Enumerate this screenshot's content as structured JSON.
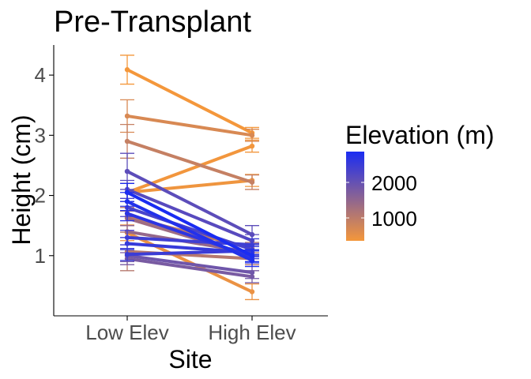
{
  "chart_data": {
    "type": "line",
    "title": "Pre-Transplant",
    "xlabel": "Site",
    "ylabel": "Height (cm)",
    "categories": [
      "Low Elev",
      "High Elev"
    ],
    "y_ticks": [
      "1",
      "2",
      "3",
      "4"
    ],
    "ylim": [
      0.0,
      4.5
    ],
    "grid": false,
    "legend": {
      "title": "Elevation (m)",
      "placement": "right",
      "labels": [
        "2000",
        "1000"
      ],
      "colorscale": {
        "low": "#F4973B",
        "high": "#1A2CF2"
      }
    },
    "series": [
      {
        "elevation": 400,
        "values": [
          4.09,
          3.04
        ],
        "err": [
          [
            3.85,
            4.33
          ],
          [
            2.95,
            3.13
          ]
        ]
      },
      {
        "elevation": 420,
        "values": [
          2.05,
          2.82
        ],
        "err": [
          [
            1.9,
            2.2
          ],
          [
            2.72,
            2.92
          ]
        ]
      },
      {
        "elevation": 450,
        "values": [
          2.05,
          2.25
        ],
        "err": [
          [
            1.9,
            2.2
          ],
          [
            2.15,
            2.35
          ]
        ]
      },
      {
        "elevation": 500,
        "values": [
          1.38,
          0.4
        ],
        "err": [
          [
            1.25,
            1.51
          ],
          [
            0.27,
            0.53
          ]
        ]
      },
      {
        "elevation": 700,
        "values": [
          3.32,
          3.0
        ],
        "err": [
          [
            3.05,
            3.59
          ],
          [
            2.9,
            3.1
          ]
        ]
      },
      {
        "elevation": 900,
        "values": [
          2.9,
          2.22
        ],
        "err": [
          [
            2.62,
            3.18
          ],
          [
            2.1,
            2.34
          ]
        ]
      },
      {
        "elevation": 1000,
        "values": [
          1.65,
          1.12
        ],
        "err": [
          [
            1.5,
            1.8
          ],
          [
            1.02,
            1.22
          ]
        ]
      },
      {
        "elevation": 1050,
        "values": [
          1.07,
          0.95
        ],
        "err": [
          [
            0.75,
            1.39
          ],
          [
            0.85,
            1.05
          ]
        ]
      },
      {
        "elevation": 1300,
        "values": [
          1.62,
          1.0
        ],
        "err": [
          [
            1.5,
            1.74
          ],
          [
            0.9,
            1.1
          ]
        ]
      },
      {
        "elevation": 1400,
        "values": [
          1.4,
          1.05
        ],
        "err": [
          [
            1.3,
            1.5
          ],
          [
            0.95,
            1.15
          ]
        ]
      },
      {
        "elevation": 1700,
        "values": [
          0.95,
          0.65
        ],
        "err": [
          [
            0.85,
            1.05
          ],
          [
            0.55,
            0.75
          ]
        ]
      },
      {
        "elevation": 1800,
        "values": [
          1.0,
          0.72
        ],
        "err": [
          [
            0.9,
            1.1
          ],
          [
            0.62,
            0.82
          ]
        ]
      },
      {
        "elevation": 2000,
        "values": [
          2.4,
          1.35
        ],
        "err": [
          [
            2.1,
            2.7
          ],
          [
            1.2,
            1.5
          ]
        ]
      },
      {
        "elevation": 2050,
        "values": [
          2.1,
          1.25
        ],
        "err": [
          [
            1.95,
            2.25
          ],
          [
            1.15,
            1.35
          ]
        ]
      },
      {
        "elevation": 2200,
        "values": [
          1.8,
          1.1
        ],
        "err": [
          [
            1.65,
            1.95
          ],
          [
            1.0,
            1.2
          ]
        ]
      },
      {
        "elevation": 2300,
        "values": [
          1.3,
          1.18
        ],
        "err": [
          [
            1.18,
            1.42
          ],
          [
            1.08,
            1.28
          ]
        ]
      },
      {
        "elevation": 2350,
        "values": [
          1.02,
          1.08
        ],
        "err": [
          [
            0.92,
            1.12
          ],
          [
            0.98,
            1.18
          ]
        ]
      },
      {
        "elevation": 2400,
        "values": [
          1.2,
          1.05
        ],
        "err": [
          [
            1.1,
            1.3
          ],
          [
            0.95,
            1.15
          ]
        ]
      },
      {
        "elevation": 2500,
        "values": [
          1.7,
          0.98
        ],
        "err": [
          [
            1.58,
            1.82
          ],
          [
            0.88,
            1.08
          ]
        ]
      },
      {
        "elevation": 2600,
        "values": [
          1.9,
          0.92
        ],
        "err": [
          [
            1.75,
            2.05
          ],
          [
            0.82,
            1.02
          ]
        ]
      },
      {
        "elevation": 2700,
        "values": [
          2.05,
          1.0
        ],
        "err": [
          [
            1.9,
            2.2
          ],
          [
            0.9,
            1.1
          ]
        ]
      }
    ]
  }
}
